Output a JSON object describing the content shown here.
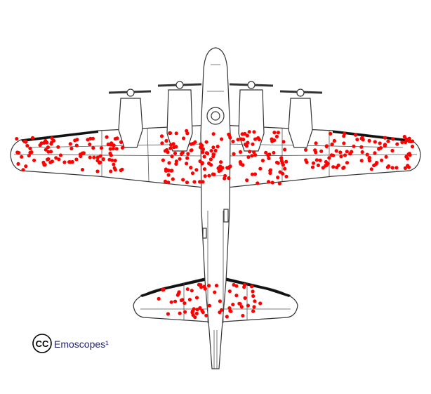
{
  "credit": {
    "logo": "CC",
    "text": "Emoscopes¹"
  }
}
